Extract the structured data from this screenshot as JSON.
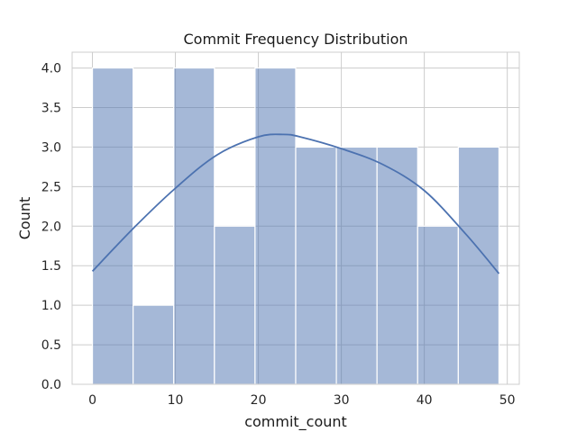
{
  "chart_data": {
    "type": "histogram",
    "title": "Commit Frequency Distribution",
    "xlabel": "commit_count",
    "ylabel": "Count",
    "xlim": [
      -2.45,
      51.45
    ],
    "ylim": [
      0,
      4.2
    ],
    "xticks": [
      0,
      10,
      20,
      30,
      40,
      50
    ],
    "yticks": [
      0.0,
      0.5,
      1.0,
      1.5,
      2.0,
      2.5,
      3.0,
      3.5,
      4.0
    ],
    "grid": true,
    "bar_color": "#4c72b0",
    "bins": [
      {
        "x0": 0.0,
        "x1": 4.9,
        "count": 4
      },
      {
        "x0": 4.9,
        "x1": 9.8,
        "count": 1
      },
      {
        "x0": 9.8,
        "x1": 14.7,
        "count": 4
      },
      {
        "x0": 14.7,
        "x1": 19.6,
        "count": 2
      },
      {
        "x0": 19.6,
        "x1": 24.5,
        "count": 4
      },
      {
        "x0": 24.5,
        "x1": 29.4,
        "count": 3
      },
      {
        "x0": 29.4,
        "x1": 34.3,
        "count": 3
      },
      {
        "x0": 34.3,
        "x1": 39.2,
        "count": 3
      },
      {
        "x0": 39.2,
        "x1": 44.1,
        "count": 2
      },
      {
        "x0": 44.1,
        "x1": 49.0,
        "count": 3
      }
    ],
    "kde": {
      "x": [
        0,
        5,
        10,
        15,
        20,
        23,
        25,
        30,
        35,
        40,
        45,
        49
      ],
      "y": [
        1.43,
        1.98,
        2.48,
        2.9,
        3.13,
        3.16,
        3.13,
        2.98,
        2.78,
        2.45,
        1.9,
        1.4
      ],
      "color": "#4c72b0"
    }
  }
}
